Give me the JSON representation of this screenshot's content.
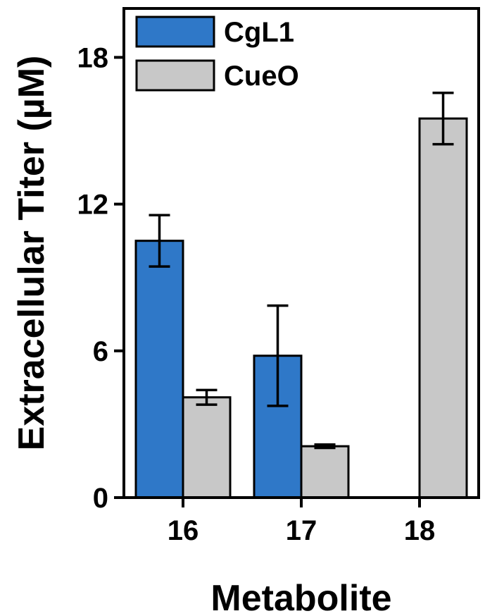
{
  "chart_data": {
    "type": "bar",
    "xlabel": "Metabolite",
    "ylabel": "Extracellular Titer (µM)",
    "categories": [
      "16",
      "17",
      "18"
    ],
    "ylim": [
      0,
      20
    ],
    "yticks": [
      0,
      6,
      12,
      18
    ],
    "series": [
      {
        "name": "CgL1",
        "color": "#2f78c8",
        "values": [
          10.5,
          5.8,
          null
        ],
        "errors": [
          1.05,
          2.05,
          null
        ]
      },
      {
        "name": "CueO",
        "color": "#c8c8c8",
        "values": [
          4.1,
          2.1,
          15.5
        ],
        "errors": [
          0.3,
          0.07,
          1.05
        ]
      }
    ],
    "legend_position": "top-left",
    "grid": false
  }
}
